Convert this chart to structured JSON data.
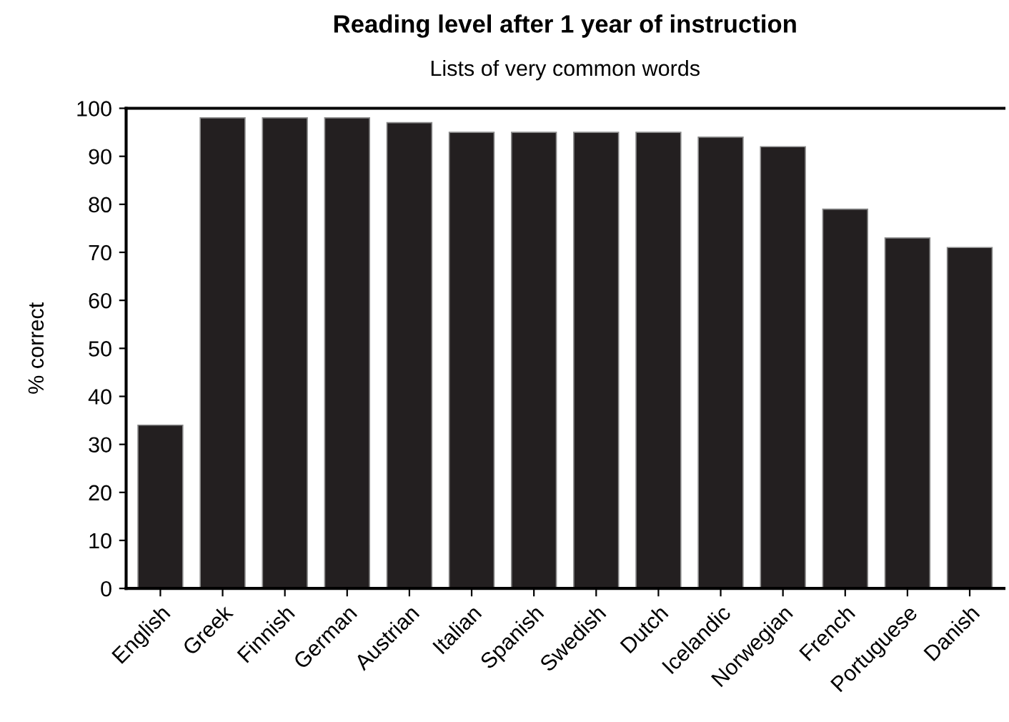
{
  "chart_data": {
    "type": "bar",
    "title": "Reading level after 1 year of instruction",
    "subtitle": "Lists of very common words",
    "ylabel": "% correct",
    "categories": [
      "English",
      "Greek",
      "Finnish",
      "German",
      "Austrian",
      "Italian",
      "Spanish",
      "Swedish",
      "Dutch",
      "Icelandic",
      "Norwegian",
      "French",
      "Portuguese",
      "Danish"
    ],
    "values": [
      34,
      98,
      98,
      98,
      97,
      95,
      95,
      95,
      95,
      94,
      92,
      79,
      73,
      71
    ],
    "color": "#231f20",
    "ylim": [
      0,
      100
    ],
    "yticks": [
      0,
      10,
      20,
      30,
      40,
      50,
      60,
      70,
      80,
      90,
      100
    ],
    "grid": false,
    "legend": false
  }
}
